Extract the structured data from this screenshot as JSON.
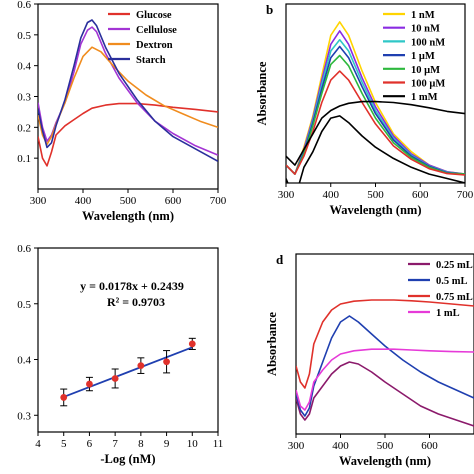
{
  "chart_data": [
    {
      "type": "line",
      "panel_label": "",
      "xlabel": "Wavelength (nm)",
      "ylabel": "",
      "xlim": [
        300,
        700
      ],
      "ylim": [
        0,
        0.6
      ],
      "xticks": [
        300,
        400,
        500,
        600,
        700
      ],
      "yticks": [
        0.1,
        0.2,
        0.3,
        0.4,
        0.5,
        0.6
      ],
      "grid": false,
      "legend_position": "top-right",
      "series": [
        {
          "name": "Glucose",
          "color": "#e0312b",
          "x": [
            300,
            310,
            320,
            330,
            340,
            360,
            380,
            400,
            420,
            450,
            480,
            520,
            560,
            600,
            650,
            700
          ],
          "y": [
            0.17,
            0.1,
            0.075,
            0.12,
            0.175,
            0.205,
            0.225,
            0.245,
            0.262,
            0.272,
            0.277,
            0.277,
            0.272,
            0.265,
            0.258,
            0.25
          ]
        },
        {
          "name": "Cellulose",
          "color": "#a335d4",
          "x": [
            300,
            310,
            320,
            330,
            340,
            360,
            380,
            395,
            410,
            420,
            430,
            450,
            480,
            520,
            560,
            600,
            650,
            700
          ],
          "y": [
            0.28,
            0.2,
            0.155,
            0.175,
            0.215,
            0.28,
            0.38,
            0.47,
            0.515,
            0.525,
            0.51,
            0.44,
            0.36,
            0.28,
            0.22,
            0.18,
            0.14,
            0.11
          ]
        },
        {
          "name": "Dextron",
          "color": "#f08c1e",
          "x": [
            300,
            310,
            320,
            330,
            340,
            360,
            380,
            400,
            420,
            440,
            470,
            500,
            540,
            580,
            620,
            660,
            700
          ],
          "y": [
            0.24,
            0.175,
            0.145,
            0.17,
            0.21,
            0.28,
            0.36,
            0.43,
            0.46,
            0.445,
            0.395,
            0.35,
            0.305,
            0.27,
            0.245,
            0.22,
            0.2
          ]
        },
        {
          "name": "Starch",
          "color": "#2a2f9c",
          "x": [
            300,
            310,
            320,
            330,
            340,
            360,
            380,
            395,
            410,
            420,
            430,
            450,
            480,
            520,
            560,
            600,
            650,
            700
          ],
          "y": [
            0.26,
            0.19,
            0.135,
            0.15,
            0.205,
            0.29,
            0.4,
            0.49,
            0.54,
            0.548,
            0.53,
            0.46,
            0.375,
            0.29,
            0.22,
            0.17,
            0.13,
            0.09
          ]
        }
      ]
    },
    {
      "type": "line",
      "panel_label": "b",
      "xlabel": "Wavelength (nm)",
      "ylabel": "Absorbance",
      "xlim": [
        300,
        700
      ],
      "ylim": [
        0.1,
        0.5
      ],
      "xticks": [
        300,
        400,
        500,
        600,
        700
      ],
      "yticks": [],
      "grid": false,
      "legend_position": "top-right",
      "series": [
        {
          "name": "1 nM",
          "color": "#ffd400",
          "x": [
            300,
            320,
            340,
            360,
            380,
            400,
            420,
            440,
            470,
            500,
            540,
            580,
            620,
            660,
            700
          ],
          "y": [
            0.14,
            0.12,
            0.18,
            0.25,
            0.34,
            0.43,
            0.46,
            0.43,
            0.35,
            0.28,
            0.21,
            0.17,
            0.14,
            0.125,
            0.12
          ]
        },
        {
          "name": "10 nM",
          "color": "#8a2be2",
          "x": [
            300,
            320,
            340,
            360,
            380,
            400,
            420,
            440,
            470,
            500,
            540,
            580,
            620,
            660,
            700
          ],
          "y": [
            0.14,
            0.12,
            0.175,
            0.245,
            0.33,
            0.41,
            0.44,
            0.41,
            0.335,
            0.27,
            0.205,
            0.165,
            0.14,
            0.125,
            0.12
          ]
        },
        {
          "name": "100 nM",
          "color": "#2fc7c7",
          "x": [
            300,
            320,
            340,
            360,
            380,
            400,
            420,
            440,
            470,
            500,
            540,
            580,
            620,
            660,
            700
          ],
          "y": [
            0.14,
            0.12,
            0.17,
            0.24,
            0.32,
            0.395,
            0.42,
            0.395,
            0.325,
            0.262,
            0.2,
            0.162,
            0.138,
            0.124,
            0.12
          ]
        },
        {
          "name": "1 μM",
          "color": "#1f3fb0",
          "x": [
            300,
            320,
            340,
            360,
            380,
            400,
            420,
            440,
            470,
            500,
            540,
            580,
            620,
            660,
            700
          ],
          "y": [
            0.14,
            0.12,
            0.168,
            0.235,
            0.31,
            0.38,
            0.405,
            0.38,
            0.315,
            0.255,
            0.196,
            0.16,
            0.137,
            0.123,
            0.12
          ]
        },
        {
          "name": "10 μM",
          "color": "#2db83d",
          "x": [
            300,
            320,
            340,
            360,
            380,
            400,
            420,
            440,
            470,
            500,
            540,
            580,
            620,
            660,
            700
          ],
          "y": [
            0.14,
            0.12,
            0.165,
            0.228,
            0.3,
            0.365,
            0.385,
            0.362,
            0.3,
            0.245,
            0.19,
            0.157,
            0.135,
            0.122,
            0.12
          ]
        },
        {
          "name": "100 μM",
          "color": "#e0312b",
          "x": [
            300,
            320,
            340,
            360,
            380,
            400,
            420,
            440,
            470,
            500,
            540,
            580,
            620,
            660,
            700
          ],
          "y": [
            0.14,
            0.12,
            0.16,
            0.215,
            0.28,
            0.33,
            0.35,
            0.33,
            0.28,
            0.232,
            0.183,
            0.153,
            0.132,
            0.121,
            0.118
          ]
        },
        {
          "name": "1 mM",
          "color": "#000000",
          "x": [
            300,
            320,
            340,
            360,
            380,
            400,
            420,
            440,
            470,
            500,
            540,
            580,
            620,
            660,
            700
          ],
          "y": [
            0.16,
            0.14,
            0.175,
            0.21,
            0.245,
            0.262,
            0.272,
            0.278,
            0.282,
            0.282,
            0.28,
            0.275,
            0.268,
            0.26,
            0.255
          ]
        },
        {
          "name": "",
          "color": "#000000",
          "x": [
            300,
            310,
            320,
            330,
            340,
            360,
            380,
            400,
            420,
            440,
            470,
            500,
            540,
            580,
            620,
            660,
            700
          ],
          "y": [
            0.11,
            0.085,
            0.08,
            0.1,
            0.135,
            0.17,
            0.215,
            0.245,
            0.25,
            0.235,
            0.205,
            0.18,
            0.155,
            0.135,
            0.12,
            0.11,
            0.1
          ]
        }
      ]
    },
    {
      "type": "scatter",
      "panel_label": "",
      "xlabel": "-Log (nM)",
      "ylabel": "",
      "xlim": [
        4,
        11
      ],
      "ylim": [
        0.27,
        0.6
      ],
      "xticks": [
        4,
        5,
        6,
        7,
        8,
        9,
        10,
        11
      ],
      "yticks": [
        0.3,
        0.4,
        0.5,
        0.6
      ],
      "grid": false,
      "equation": "y = 0.0178x + 0.2439",
      "r_squared": "R² = 0.9703",
      "x": [
        5,
        6,
        7,
        8,
        9,
        10
      ],
      "y": [
        0.332,
        0.356,
        0.366,
        0.389,
        0.396,
        0.428
      ],
      "error": [
        0.015,
        0.012,
        0.017,
        0.014,
        0.02,
        0.01
      ],
      "fit": {
        "slope": 0.0178,
        "intercept": 0.2439,
        "x_range": [
          5,
          10
        ]
      },
      "point_color": "#e0312b",
      "line_color": "#1f3fb0"
    },
    {
      "type": "line",
      "panel_label": "d",
      "xlabel": "Wavelength (nm)",
      "ylabel": "Absorbance",
      "xlim": [
        300,
        700
      ],
      "ylim": [
        0.05,
        0.5
      ],
      "xticks": [
        300,
        400,
        500,
        600
      ],
      "yticks": [],
      "grid": false,
      "legend_position": "top-right",
      "series": [
        {
          "name": "0.25 mL",
          "color": "#8b1a6b",
          "x": [
            300,
            310,
            320,
            330,
            340,
            360,
            380,
            400,
            420,
            440,
            470,
            500,
            540,
            580,
            620,
            660,
            700
          ],
          "y": [
            0.14,
            0.1,
            0.085,
            0.1,
            0.14,
            0.17,
            0.2,
            0.22,
            0.23,
            0.225,
            0.205,
            0.18,
            0.15,
            0.12,
            0.1,
            0.085,
            0.07
          ]
        },
        {
          "name": "0.5 mL",
          "color": "#1f3fb0",
          "x": [
            300,
            310,
            320,
            330,
            340,
            360,
            380,
            400,
            420,
            440,
            470,
            500,
            540,
            580,
            620,
            660,
            700
          ],
          "y": [
            0.15,
            0.11,
            0.095,
            0.115,
            0.17,
            0.23,
            0.29,
            0.33,
            0.345,
            0.33,
            0.3,
            0.27,
            0.235,
            0.205,
            0.18,
            0.16,
            0.14
          ]
        },
        {
          "name": "0.75 mL",
          "color": "#e0312b",
          "x": [
            300,
            310,
            320,
            330,
            340,
            360,
            380,
            400,
            430,
            470,
            520,
            560,
            600,
            650,
            700
          ],
          "y": [
            0.22,
            0.18,
            0.165,
            0.2,
            0.275,
            0.33,
            0.36,
            0.375,
            0.382,
            0.385,
            0.385,
            0.383,
            0.38,
            0.375,
            0.37
          ]
        },
        {
          "name": "1 mL",
          "color": "#e63ad8",
          "x": [
            300,
            310,
            320,
            330,
            340,
            360,
            380,
            400,
            430,
            470,
            520,
            560,
            600,
            650,
            700
          ],
          "y": [
            0.16,
            0.12,
            0.11,
            0.13,
            0.18,
            0.21,
            0.235,
            0.25,
            0.258,
            0.262,
            0.262,
            0.26,
            0.258,
            0.256,
            0.255
          ]
        }
      ]
    }
  ]
}
